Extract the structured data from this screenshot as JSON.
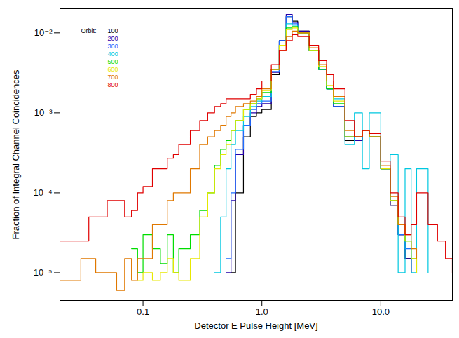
{
  "chart_data": {
    "type": "line",
    "x_label": "Detector E Pulse Height [MeV]",
    "y_label": "Fraction of Integral Channel Coincidences",
    "log": true,
    "grid": false,
    "legend": "top-left",
    "legend_title": "Orbit:",
    "line_style": "step",
    "xlim": [
      0.02,
      40
    ],
    "ylim": [
      4.5e-06,
      0.02
    ],
    "xticks": [
      0.1,
      {
        "value": 1,
        "label": "1.0"
      },
      {
        "value": 10,
        "label": "10.0"
      }
    ],
    "yticks": [
      {
        "value": 1e-05,
        "label": "10⁻⁵"
      },
      {
        "value": 0.0001,
        "label": "10⁻⁴"
      },
      {
        "value": 0.001,
        "label": "10⁻³"
      },
      {
        "value": 0.01,
        "label": "10⁻²"
      }
    ],
    "x": [
      0.02,
      0.025,
      0.03,
      0.035,
      0.04,
      0.05,
      0.06,
      0.07,
      0.08,
      0.09,
      0.1,
      0.12,
      0.14,
      0.16,
      0.18,
      0.2,
      0.25,
      0.3,
      0.35,
      0.4,
      0.45,
      0.5,
      0.55,
      0.6,
      0.7,
      0.8,
      0.9,
      1.0,
      1.2,
      1.4,
      1.6,
      1.8,
      2.0,
      2.5,
      3.0,
      3.5,
      4.0,
      5.0,
      6.0,
      7.0,
      8.0,
      10,
      12,
      14,
      16,
      18,
      20,
      25,
      30,
      35,
      40
    ],
    "series": [
      {
        "name": "100",
        "color": "#000000",
        "values": [
          null,
          null,
          null,
          null,
          null,
          null,
          null,
          null,
          null,
          null,
          null,
          null,
          null,
          null,
          null,
          null,
          null,
          null,
          null,
          null,
          null,
          null,
          1e-05,
          0.0001,
          0.0005,
          0.0009,
          0.001,
          0.0011,
          0.003,
          0.008,
          0.016,
          0.014,
          0.0105,
          0.006,
          0.0035,
          0.002,
          0.0012,
          0.00045,
          0.00045,
          0.0006,
          0.0005,
          0.0002,
          7e-05,
          3e-05,
          1.5e-05,
          1e-05,
          null,
          null,
          null,
          null,
          null
        ]
      },
      {
        "name": "200",
        "color": "#2400a8",
        "values": [
          null,
          null,
          null,
          null,
          null,
          null,
          null,
          null,
          null,
          null,
          null,
          null,
          null,
          null,
          null,
          null,
          null,
          null,
          null,
          null,
          null,
          1e-05,
          8e-05,
          0.0003,
          0.0007,
          0.001,
          0.0012,
          0.0013,
          0.0032,
          0.008,
          0.017,
          0.0135,
          0.0105,
          0.006,
          0.0035,
          0.002,
          0.0012,
          0.0005,
          0.00045,
          0.0006,
          0.0005,
          0.0002,
          7e-05,
          3e-05,
          1.5e-05,
          1e-05,
          null,
          null,
          null,
          null,
          null
        ]
      },
      {
        "name": "300",
        "color": "#1e6eff",
        "values": [
          null,
          null,
          null,
          null,
          null,
          null,
          null,
          null,
          null,
          null,
          null,
          null,
          null,
          null,
          null,
          null,
          null,
          null,
          null,
          null,
          null,
          1.5e-05,
          0.0001,
          0.00035,
          0.0007,
          0.0011,
          0.0013,
          0.0014,
          0.0033,
          0.008,
          0.016,
          0.013,
          0.01,
          0.006,
          0.0035,
          0.002,
          0.0012,
          0.0005,
          0.0005,
          0.0006,
          0.0005,
          0.0002,
          8e-05,
          3e-05,
          2e-05,
          1e-05,
          null,
          null,
          null,
          null,
          null
        ]
      },
      {
        "name": "400",
        "color": "#00c8e0",
        "values": [
          null,
          null,
          null,
          null,
          null,
          null,
          null,
          null,
          null,
          null,
          null,
          null,
          null,
          null,
          null,
          null,
          null,
          null,
          null,
          1e-05,
          5e-05,
          0.0002,
          0.0004,
          0.0006,
          0.0009,
          0.0012,
          0.0014,
          0.0016,
          0.0035,
          0.007,
          0.013,
          0.0125,
          0.01,
          0.006,
          0.0035,
          0.002,
          0.0015,
          0.0004,
          0.001,
          0.0002,
          0.001,
          0.0002,
          0.0003,
          1e-05,
          0.0002,
          1e-05,
          0.0002,
          1e-05,
          null,
          null,
          null
        ]
      },
      {
        "name": "500",
        "color": "#00dd00",
        "values": [
          null,
          null,
          null,
          null,
          null,
          null,
          null,
          null,
          2e-05,
          1e-05,
          3e-05,
          2e-05,
          1.3e-05,
          3e-05,
          1e-05,
          2e-05,
          3e-05,
          6e-05,
          0.0001,
          0.00022,
          0.00035,
          0.00045,
          0.0006,
          0.0008,
          0.0011,
          0.0013,
          0.0015,
          0.0018,
          0.0035,
          0.007,
          0.0115,
          0.012,
          0.01,
          0.006,
          0.0035,
          0.002,
          0.0013,
          0.0005,
          0.0005,
          0.0006,
          0.0005,
          0.0002,
          8e-05,
          4e-05,
          2.5e-05,
          1.5e-05,
          1e-05,
          null,
          null,
          null,
          null
        ]
      },
      {
        "name": "600",
        "color": "#e8e800",
        "values": [
          null,
          null,
          null,
          null,
          null,
          null,
          null,
          null,
          null,
          8e-06,
          1e-05,
          8e-06,
          1e-05,
          1.5e-05,
          1e-05,
          8e-06,
          1.5e-05,
          5e-05,
          0.0001,
          0.0002,
          0.0003,
          0.0004,
          0.0006,
          0.0008,
          0.0011,
          0.0013,
          0.0015,
          0.0019,
          0.0035,
          0.007,
          0.011,
          0.0115,
          0.01,
          0.006,
          0.0038,
          0.0022,
          0.0014,
          0.0005,
          0.0005,
          0.0006,
          0.0005,
          0.0002,
          8e-05,
          4e-05,
          2.5e-05,
          1.5e-05,
          1e-05,
          null,
          null,
          null,
          null
        ]
      },
      {
        "name": "700",
        "color": "#e07800",
        "values": [
          8e-06,
          8e-06,
          1.5e-05,
          1.5e-05,
          1e-05,
          1e-05,
          6e-06,
          1.5e-05,
          8e-06,
          1.5e-05,
          1.5e-05,
          4e-05,
          4e-05,
          8e-05,
          0.0001,
          0.0001,
          0.0002,
          0.0004,
          0.0005,
          0.0006,
          0.0007,
          0.0009,
          0.001,
          0.0012,
          0.0013,
          0.0014,
          0.0016,
          0.002,
          0.0035,
          0.006,
          0.009,
          0.0105,
          0.01,
          0.0065,
          0.004,
          0.0025,
          0.0016,
          0.0006,
          0.0005,
          0.0006,
          0.0005,
          0.00022,
          9e-05,
          4e-05,
          3e-05,
          2e-05,
          1.5e-05,
          null,
          null,
          null,
          null
        ]
      },
      {
        "name": "800",
        "color": "#e00000",
        "values": [
          2.5e-05,
          2.5e-05,
          2.5e-05,
          5e-05,
          5e-05,
          8e-05,
          8e-05,
          5e-05,
          6e-05,
          0.0001,
          0.00012,
          0.0002,
          0.0002,
          0.00027,
          0.0003,
          0.0004,
          0.0006,
          0.0008,
          0.001,
          0.0012,
          0.0013,
          0.0015,
          0.0015,
          0.0015,
          0.0015,
          0.0017,
          0.002,
          0.0025,
          0.004,
          0.006,
          0.008,
          0.0095,
          0.009,
          0.007,
          0.0045,
          0.003,
          0.002,
          0.0008,
          0.0005,
          0.0006,
          0.00055,
          0.00025,
          0.0001,
          5e-05,
          3e-05,
          4e-05,
          0.0001,
          4e-05,
          2.5e-05,
          1.5e-05,
          1e-05
        ]
      }
    ]
  }
}
